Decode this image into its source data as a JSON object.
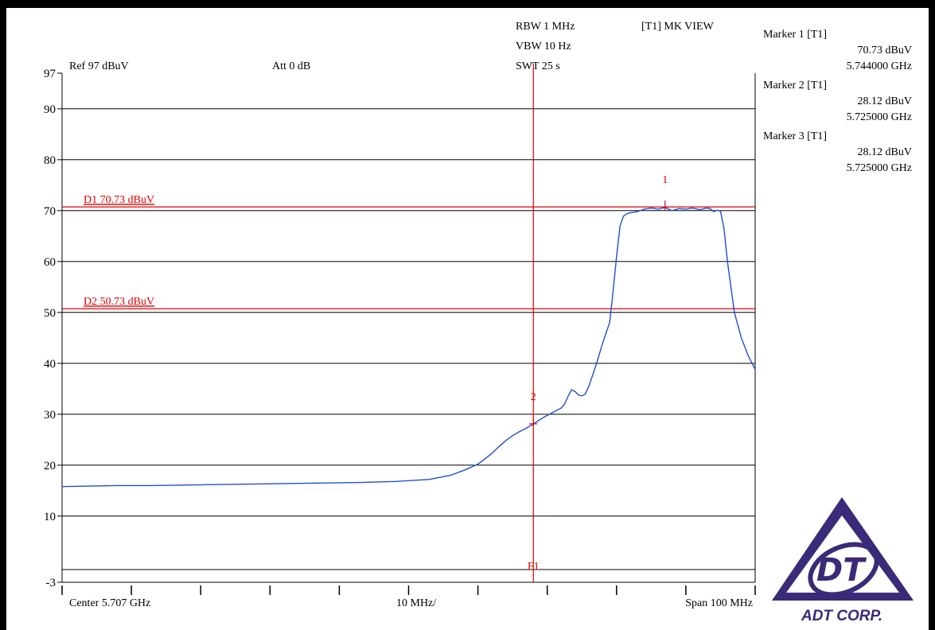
{
  "header": {
    "ref": "Ref 97 dBuV",
    "att": "Att 0 dB",
    "rbw": "RBW 1 MHz",
    "vbw": "VBW 10 Hz",
    "swt": "SWT 25 s",
    "view": "[T1] MK VIEW"
  },
  "markers": [
    {
      "label": "Marker 1 [T1]",
      "level": "70.73 dBuV",
      "freq": "5.744000 GHz"
    },
    {
      "label": "Marker 2 [T1]",
      "level": "28.12 dBuV",
      "freq": "5.725000 GHz"
    },
    {
      "label": "Marker 3 [T1]",
      "level": "28.12 dBuV",
      "freq": "5.725000 GHz"
    }
  ],
  "footer": {
    "center": "Center 5.707 GHz",
    "div": "10 MHz/",
    "span": "Span 100 MHz"
  },
  "logo": {
    "text": "ADT CORP."
  },
  "chart_data": {
    "type": "line",
    "ylim": [
      -3,
      97
    ],
    "y_ticks": [
      "97",
      "90",
      "80",
      "70",
      "60",
      "50",
      "40",
      "30",
      "20",
      "10",
      "-3"
    ],
    "y_tick_values": [
      97,
      90,
      80,
      70,
      60,
      50,
      40,
      30,
      20,
      10,
      -3
    ],
    "grid_levels": [
      90,
      80,
      70,
      60,
      50,
      40,
      30,
      20,
      10,
      -0.5
    ],
    "xlim": [
      5657,
      5757
    ],
    "x_unit": "MHz",
    "display_lines": [
      {
        "label": "D1 70.73 dBuV",
        "level": 70.73,
        "color": "#e00000"
      },
      {
        "label": "D2 50.73 dBuV",
        "level": 50.73,
        "color": "#e00000"
      }
    ],
    "freq_line": {
      "label": "F1",
      "freq": 5725.0,
      "color": "#e00000"
    },
    "marker_points": [
      {
        "label": "1",
        "freq": 5744.0,
        "level": 70.73
      },
      {
        "label": "2",
        "freq": 5725.0,
        "level": 28.12
      }
    ],
    "series": [
      {
        "color": "#2050d0",
        "x": [
          5657,
          5665,
          5670,
          5680,
          5690,
          5700,
          5705,
          5710,
          5713,
          5715,
          5717,
          5718,
          5719,
          5720,
          5721,
          5722,
          5723,
          5724,
          5725,
          5726,
          5727,
          5728,
          5729,
          5729.5,
          5730,
          5730.5,
          5731,
          5731.5,
          5732,
          5732.5,
          5733,
          5734,
          5735,
          5736,
          5736.5,
          5737,
          5737.5,
          5738,
          5738.5,
          5739,
          5740,
          5741,
          5742,
          5743,
          5744,
          5745,
          5746,
          5747,
          5748,
          5749,
          5750,
          5750.5,
          5751,
          5751.5,
          5752,
          5752.5,
          5753,
          5754,
          5755,
          5756,
          5757
        ],
        "values": [
          15.8,
          16.0,
          16.0,
          16.2,
          16.4,
          16.6,
          16.8,
          17.2,
          18.0,
          19.0,
          20.2,
          21.2,
          22.3,
          23.6,
          24.8,
          25.8,
          26.6,
          27.3,
          28.1,
          29.0,
          29.8,
          30.5,
          31.2,
          32.0,
          33.5,
          34.8,
          34.5,
          33.8,
          33.6,
          34.0,
          35.5,
          39.5,
          44.0,
          48.0,
          54.0,
          61.0,
          67.0,
          68.9,
          69.4,
          69.6,
          69.8,
          70.3,
          70.5,
          70.3,
          70.6,
          70.0,
          70.4,
          70.3,
          70.5,
          70.2,
          70.5,
          70.4,
          69.8,
          70.1,
          69.9,
          66.5,
          60.0,
          50.0,
          45.0,
          41.5,
          38.8
        ]
      }
    ]
  }
}
